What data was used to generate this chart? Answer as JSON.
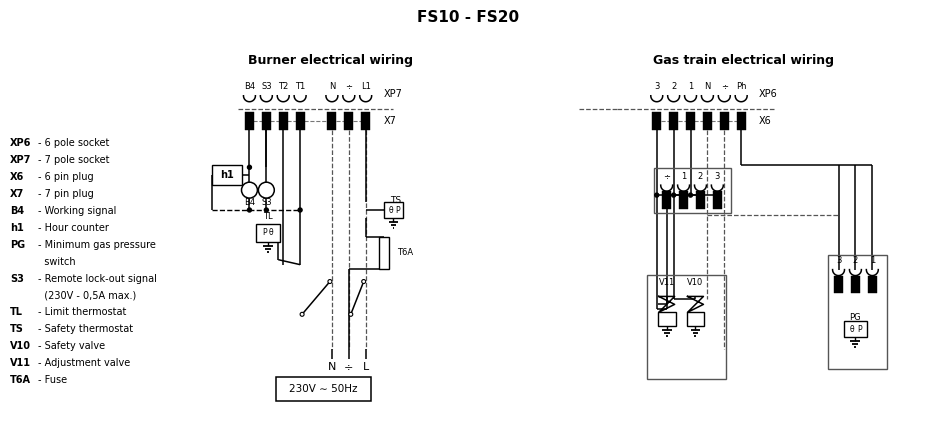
{
  "title": "FS10 - FS20",
  "burner_title": "Burner electrical wiring",
  "gas_title": "Gas train electrical wiring",
  "bg_color": "#ffffff",
  "burner_xp7_labels": [
    "B4",
    "S3",
    "T2",
    "T1",
    "N",
    "÷",
    "L1"
  ],
  "gas_xp6_labels": [
    "3",
    "2",
    "1",
    "N",
    "÷",
    "Ph"
  ],
  "legend_entries": [
    [
      "XP6",
      "- 6 pole socket"
    ],
    [
      "XP7",
      "- 7 pole socket"
    ],
    [
      "X6",
      "- 6 pin plug"
    ],
    [
      "X7",
      "- 7 pin plug"
    ],
    [
      "B4",
      "- Working signal"
    ],
    [
      "h1",
      "- Hour counter"
    ],
    [
      "PG",
      "- Minimum gas pressure"
    ],
    [
      "",
      "  switch"
    ],
    [
      "S3",
      "- Remote lock-out signal"
    ],
    [
      "",
      "  (230V - 0,5A max.)"
    ],
    [
      "TL",
      "- Limit thermostat"
    ],
    [
      "TS",
      "- Safety thermostat"
    ],
    [
      "V10",
      "- Safety valve"
    ],
    [
      "V11",
      "- Adjustment valve"
    ],
    [
      "T6A",
      "- Fuse"
    ]
  ]
}
